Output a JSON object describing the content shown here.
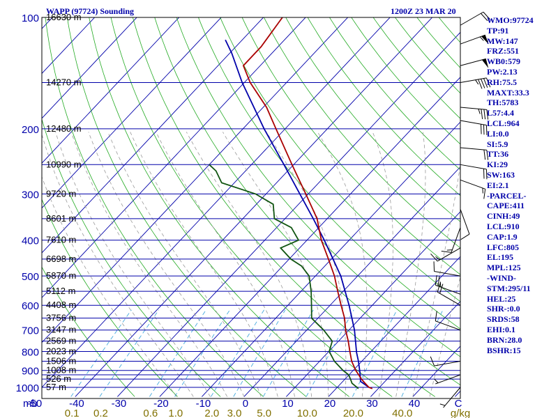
{
  "header": {
    "title": "WAPP (97724) Sounding",
    "time": "1200Z 23 MAR 20"
  },
  "indices": [
    "WMO:97724",
    "TP:91",
    "MW:147",
    "FRZ:551",
    "WB0:579",
    "PW:2.13",
    "RH:75.5",
    "MAXT:33.3",
    "TH:5783",
    "L57:4.4",
    "LCL:964",
    "LI:0.0",
    "SI:5.9",
    "TT:36",
    "KI:29",
    "SW:163",
    "EI:2.1",
    "-PARCEL-",
    "CAPE:411",
    "CINH:49",
    "LCL:910",
    "CAP:1.9",
    "LFC:805",
    "EL:195",
    "MPL:125",
    "-WIND-",
    "STM:295/11",
    "HEL:25",
    "SHR-:0.0",
    "SRDS:58",
    "EHI:0.1",
    "BRN:28.0",
    "BSHR:15"
  ],
  "colors": {
    "isobar": "#0000aa",
    "isotherm": "#0000aa",
    "dry_adiabat": "#22aa22",
    "moist_adiabat": "#999999",
    "mixing_ratio": "#44aadd",
    "temperature": "#aa0000",
    "dewpoint": "#115511",
    "parcel": "#0000aa",
    "pressure_text": "#0000aa",
    "height_text": "#000000",
    "temp_text": "#0000aa",
    "mixing_text": "#807000",
    "wind": "#000000"
  },
  "chart_data": {
    "type": "skew-t log-p sounding",
    "yaxis": {
      "unit": "mb",
      "ticks": [
        100,
        200,
        300,
        400,
        500,
        600,
        700,
        800,
        900,
        1000
      ],
      "range": [
        1050,
        100
      ],
      "scale": "log"
    },
    "xaxis": {
      "unit": "C",
      "ticks": [
        -50,
        -40,
        -30,
        -20,
        -10,
        0,
        10,
        20,
        30,
        40
      ],
      "range": [
        -50,
        50
      ]
    },
    "isobars": [
      100,
      150,
      200,
      250,
      300,
      350,
      400,
      450,
      500,
      550,
      600,
      650,
      700,
      750,
      800,
      850,
      900,
      925,
      950,
      1000
    ],
    "height_labels": [
      {
        "p": 100,
        "h": "16630 m"
      },
      {
        "p": 150,
        "h": "14270 m"
      },
      {
        "p": 200,
        "h": "12480 m"
      },
      {
        "p": 250,
        "h": "10990 m"
      },
      {
        "p": 300,
        "h": "9720 m"
      },
      {
        "p": 350,
        "h": "8601 m"
      },
      {
        "p": 400,
        "h": "7610 m"
      },
      {
        "p": 450,
        "h": "6698 m"
      },
      {
        "p": 500,
        "h": "5870 m"
      },
      {
        "p": 550,
        "h": "5112 m"
      },
      {
        "p": 600,
        "h": "4408 m"
      },
      {
        "p": 650,
        "h": "3756 m"
      },
      {
        "p": 700,
        "h": "3147 m"
      },
      {
        "p": 750,
        "h": "2569 m"
      },
      {
        "p": 800,
        "h": "2023 m"
      },
      {
        "p": 850,
        "h": "1506 m"
      },
      {
        "p": 900,
        "h": "1008 m"
      },
      {
        "p": 950,
        "h": "526 m"
      },
      {
        "p": 1000,
        "h": "57 m"
      }
    ],
    "mixing_ratio_labels": [
      "0.1",
      "0.2",
      "0.6",
      "1.0",
      "2.0",
      "3.0",
      "5.0",
      "10.0",
      "20.0",
      "40.0",
      "g/kg"
    ],
    "temperature": [
      {
        "p": 1008,
        "t": 28.6
      },
      {
        "p": 1000,
        "t": 27.5
      },
      {
        "p": 975,
        "t": 25.7
      },
      {
        "p": 950,
        "t": 23.9
      },
      {
        "p": 925,
        "t": 22.3
      },
      {
        "p": 900,
        "t": 20.6
      },
      {
        "p": 850,
        "t": 17.6
      },
      {
        "p": 800,
        "t": 15.0
      },
      {
        "p": 750,
        "t": 12.3
      },
      {
        "p": 700,
        "t": 9.2
      },
      {
        "p": 650,
        "t": 6.3
      },
      {
        "p": 600,
        "t": 2.6
      },
      {
        "p": 550,
        "t": -1.3
      },
      {
        "p": 500,
        "t": -5.5
      },
      {
        "p": 450,
        "t": -10.7
      },
      {
        "p": 400,
        "t": -16.6
      },
      {
        "p": 350,
        "t": -22.4
      },
      {
        "p": 300,
        "t": -30.6
      },
      {
        "p": 250,
        "t": -40.4
      },
      {
        "p": 200,
        "t": -52.2
      },
      {
        "p": 175,
        "t": -59.2
      },
      {
        "p": 150,
        "t": -68.6
      },
      {
        "p": 135,
        "t": -74.0
      },
      {
        "p": 120,
        "t": -74.0
      },
      {
        "p": 100,
        "t": -75.5
      }
    ],
    "dewpoint": [
      {
        "p": 1008,
        "t": 25.3
      },
      {
        "p": 1000,
        "t": 24.7
      },
      {
        "p": 975,
        "t": 22.6
      },
      {
        "p": 950,
        "t": 21.3
      },
      {
        "p": 925,
        "t": 19.9
      },
      {
        "p": 900,
        "t": 17.6
      },
      {
        "p": 850,
        "t": 13.5
      },
      {
        "p": 800,
        "t": 10.1
      },
      {
        "p": 750,
        "t": 8.5
      },
      {
        "p": 700,
        "t": 4.0
      },
      {
        "p": 650,
        "t": -1.5
      },
      {
        "p": 600,
        "t": -4.4
      },
      {
        "p": 550,
        "t": -7.6
      },
      {
        "p": 500,
        "t": -11.5
      },
      {
        "p": 470,
        "t": -15.5
      },
      {
        "p": 450,
        "t": -19.6
      },
      {
        "p": 420,
        "t": -24.5
      },
      {
        "p": 400,
        "t": -22.0
      },
      {
        "p": 370,
        "t": -26.5
      },
      {
        "p": 350,
        "t": -32.5
      },
      {
        "p": 320,
        "t": -36.0
      },
      {
        "p": 300,
        "t": -42.5
      },
      {
        "p": 280,
        "t": -53.0
      },
      {
        "p": 260,
        "t": -57.0
      },
      {
        "p": 250,
        "t": -60.0
      }
    ],
    "parcel": [
      {
        "p": 1000,
        "t": 27.5
      },
      {
        "p": 964,
        "t": 24.2
      },
      {
        "p": 910,
        "t": 22.0
      },
      {
        "p": 850,
        "t": 19.2
      },
      {
        "p": 805,
        "t": 16.8
      },
      {
        "p": 700,
        "t": 11.3
      },
      {
        "p": 600,
        "t": 4.5
      },
      {
        "p": 500,
        "t": -4.0
      },
      {
        "p": 450,
        "t": -9.6
      },
      {
        "p": 400,
        "t": -15.9
      },
      {
        "p": 350,
        "t": -23.3
      },
      {
        "p": 300,
        "t": -32.0
      },
      {
        "p": 250,
        "t": -42.3
      },
      {
        "p": 200,
        "t": -55.0
      },
      {
        "p": 150,
        "t": -70.5
      },
      {
        "p": 125,
        "t": -79.5
      },
      {
        "p": 115,
        "t": -84.0
      }
    ],
    "winds": [
      {
        "p": 105,
        "dir": 60,
        "spd": 20
      },
      {
        "p": 118,
        "dir": 70,
        "spd": 55
      },
      {
        "p": 135,
        "dir": 75,
        "spd": 50
      },
      {
        "p": 150,
        "dir": 80,
        "spd": 45
      },
      {
        "p": 175,
        "dir": 95,
        "spd": 35
      },
      {
        "p": 190,
        "dir": 100,
        "spd": 30
      },
      {
        "p": 225,
        "dir": 95,
        "spd": 20
      },
      {
        "p": 250,
        "dir": 100,
        "spd": 20
      },
      {
        "p": 275,
        "dir": 110,
        "spd": 15
      },
      {
        "p": 330,
        "dir": 160,
        "spd": 10
      },
      {
        "p": 370,
        "dir": 200,
        "spd": 15
      },
      {
        "p": 420,
        "dir": 240,
        "spd": 15
      },
      {
        "p": 500,
        "dir": 280,
        "spd": 10
      },
      {
        "p": 560,
        "dir": 290,
        "spd": 25
      },
      {
        "p": 600,
        "dir": 300,
        "spd": 20
      },
      {
        "p": 700,
        "dir": 290,
        "spd": 10
      },
      {
        "p": 850,
        "dir": 260,
        "spd": 10
      },
      {
        "p": 925,
        "dir": 250,
        "spd": 5
      },
      {
        "p": 1000,
        "dir": 220,
        "spd": 5
      }
    ]
  }
}
